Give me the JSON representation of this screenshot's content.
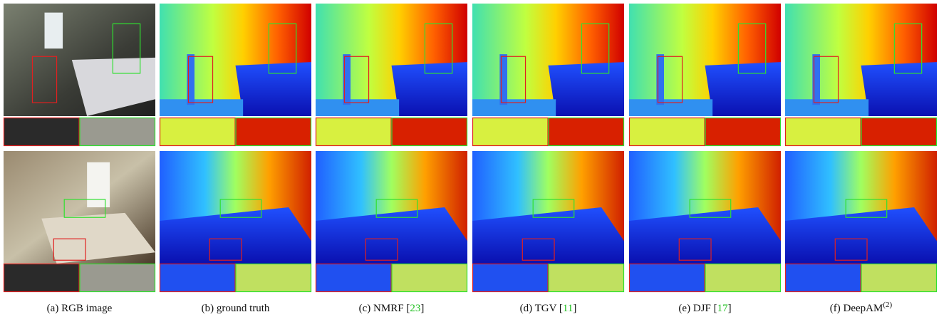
{
  "figure": {
    "captions": [
      {
        "text": "(a) RGB image"
      },
      {
        "text": "(b) ground truth"
      },
      {
        "text": "(c) NMRF [",
        "ref": "23",
        "close": "]"
      },
      {
        "text": "(d) TGV [",
        "ref": "11",
        "close": "]"
      },
      {
        "text": "(e) DJF [",
        "ref": "17",
        "close": "]"
      },
      {
        "text": "(f) DeepAM",
        "superscript": "(2)"
      }
    ]
  }
}
